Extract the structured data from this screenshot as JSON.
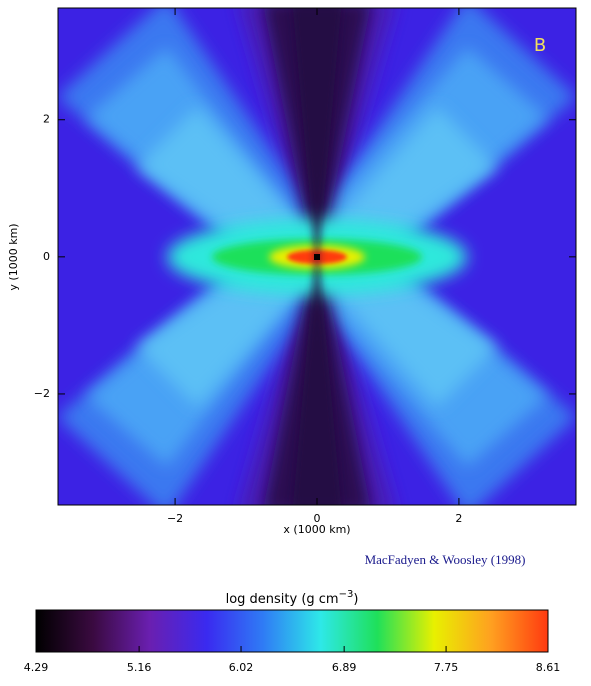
{
  "chart_data": {
    "type": "density-map",
    "panel_label": "B",
    "x_label": "x (1000 km)",
    "y_label": "y (1000 km)",
    "xlim": [
      -3.65,
      3.65
    ],
    "ylim": [
      -3.62,
      3.63
    ],
    "xticks": [
      {
        "value": -2,
        "label": "−2"
      },
      0,
      2
    ],
    "yticks": [
      {
        "value": -2,
        "label": "−2"
      },
      0,
      2
    ],
    "credit": "MacFadyen & Woosley (1998)",
    "colorbar": {
      "label": "log density (g cm",
      "label_exponent": "−3",
      "label_end": ")",
      "lim": [
        4.29,
        8.61
      ],
      "ticks": [
        4.29,
        5.16,
        6.02,
        6.89,
        7.75,
        8.61
      ],
      "colors": [
        "#000000",
        "#3a0a40",
        "#6a1fb0",
        "#3a2af0",
        "#2f7cf5",
        "#2ee8e8",
        "#1fe05a",
        "#e8f000",
        "#ffa020",
        "#ff3a10"
      ]
    }
  }
}
